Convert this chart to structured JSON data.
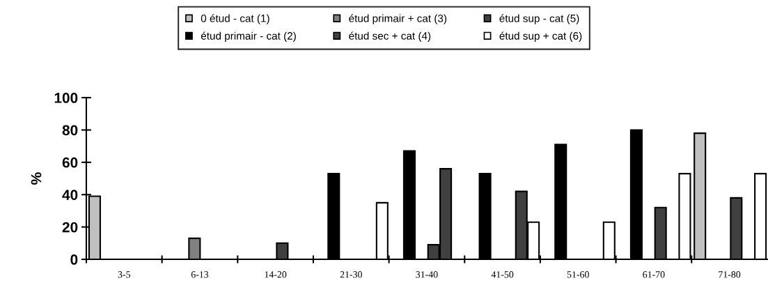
{
  "chart_data": {
    "type": "bar",
    "ylabel": "%",
    "categories": [
      "3-5",
      "6-13",
      "14-20",
      "21-30",
      "31-40",
      "41-50",
      "51-60",
      "61-70",
      "71-80"
    ],
    "series": [
      {
        "name": "0 étud - cat (1)",
        "color": "#c0c0c0",
        "values": [
          39,
          null,
          null,
          null,
          null,
          null,
          null,
          null,
          78
        ]
      },
      {
        "name": "étud primair - cat (2)",
        "color": "#000000",
        "values": [
          null,
          null,
          null,
          53,
          67,
          53,
          71,
          80,
          null
        ]
      },
      {
        "name": "étud primair + cat (3)",
        "color": "#808080",
        "values": [
          null,
          13,
          null,
          null,
          null,
          null,
          null,
          null,
          null
        ]
      },
      {
        "name": "étud sec + cat (4)",
        "color": "#404040",
        "values": [
          null,
          null,
          10,
          null,
          9,
          null,
          null,
          32,
          38
        ]
      },
      {
        "name": "étud sup - cat (5)",
        "color": "#404040",
        "values": [
          null,
          null,
          null,
          null,
          56,
          42,
          null,
          null,
          null
        ]
      },
      {
        "name": "étud sup + cat (6)",
        "color": "#ffffff",
        "values": [
          null,
          null,
          null,
          35,
          null,
          23,
          23,
          53,
          53
        ]
      }
    ],
    "ylim": [
      0,
      100
    ],
    "yticks": [
      0,
      20,
      40,
      60,
      80,
      100
    ],
    "grid": false,
    "legend": "top"
  }
}
